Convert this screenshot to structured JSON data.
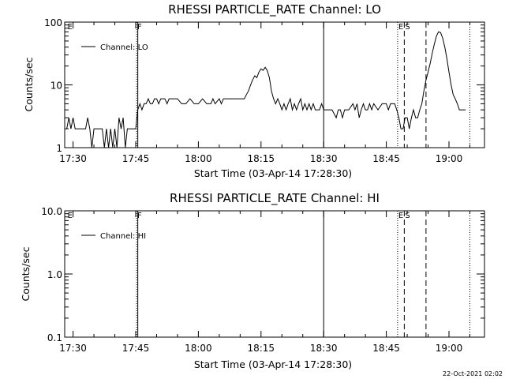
{
  "footer_timestamp": "22-Oct-2021 02:02",
  "chart_data": [
    {
      "type": "line",
      "title": "RHESSI PARTICLE_RATE Channel: LO",
      "xlabel": "Start Time (03-Apr-14 17:28:30)",
      "ylabel": "Counts/sec",
      "yscale": "log",
      "xlim_minutes": [
        -2,
        98.5
      ],
      "ylim": [
        1,
        100
      ],
      "x_ticks": [
        {
          "label": "17:30",
          "minute": 0
        },
        {
          "label": "17:45",
          "minute": 15
        },
        {
          "label": "18:00",
          "minute": 30
        },
        {
          "label": "18:15",
          "minute": 45
        },
        {
          "label": "18:30",
          "minute": 60
        },
        {
          "label": "18:45",
          "minute": 75
        },
        {
          "label": "19:00",
          "minute": 90
        }
      ],
      "y_ticks": [
        {
          "label": "1",
          "value": 1
        },
        {
          "label": "10",
          "value": 10
        },
        {
          "label": "100",
          "value": 100
        }
      ],
      "legend": {
        "label": "Channel: LO",
        "position": "top-left"
      },
      "markers": [
        {
          "minute": -1.5,
          "style": "none",
          "label": "E"
        },
        {
          "minute": 15.2,
          "style": "dotted",
          "label": "F"
        },
        {
          "minute": 15.5,
          "style": "solid",
          "label": ""
        },
        {
          "minute": 60.0,
          "style": "solid",
          "label": ""
        },
        {
          "minute": 77.7,
          "style": "dotted",
          "label": "E"
        },
        {
          "minute": 79.3,
          "style": "dashed",
          "label": "S"
        },
        {
          "minute": 84.5,
          "style": "dashed",
          "label": ""
        },
        {
          "minute": 95.0,
          "style": "dotted",
          "label": ""
        }
      ],
      "series": [
        {
          "name": "Channel: LO",
          "points": [
            [
              -1.5,
              2
            ],
            [
              -1,
              3
            ],
            [
              -0.5,
              2
            ],
            [
              0,
              3
            ],
            [
              0.5,
              2
            ],
            [
              1,
              2
            ],
            [
              2,
              2
            ],
            [
              3,
              2
            ],
            [
              3.5,
              3
            ],
            [
              4,
              2
            ],
            [
              4.5,
              1
            ],
            [
              5,
              2
            ],
            [
              6,
              2
            ],
            [
              7,
              2
            ],
            [
              7.5,
              1
            ],
            [
              8,
              2
            ],
            [
              8.5,
              1
            ],
            [
              9,
              2
            ],
            [
              9.5,
              1
            ],
            [
              10,
              2
            ],
            [
              10.5,
              1
            ],
            [
              11,
              3
            ],
            [
              11.5,
              2
            ],
            [
              12,
              3
            ],
            [
              12.5,
              1
            ],
            [
              13,
              2
            ],
            [
              14,
              2
            ],
            [
              14.5,
              2
            ],
            [
              15,
              2
            ],
            [
              15.5,
              4
            ],
            [
              16,
              5
            ],
            [
              16.5,
              4
            ],
            [
              17,
              5
            ],
            [
              17.5,
              5
            ],
            [
              18,
              6
            ],
            [
              18.5,
              5
            ],
            [
              19,
              5
            ],
            [
              19.5,
              6
            ],
            [
              20,
              6
            ],
            [
              20.5,
              5
            ],
            [
              21,
              6
            ],
            [
              22,
              6
            ],
            [
              22.5,
              5
            ],
            [
              23,
              6
            ],
            [
              24,
              6
            ],
            [
              25,
              6
            ],
            [
              26,
              5
            ],
            [
              27,
              5
            ],
            [
              28,
              6
            ],
            [
              29,
              5
            ],
            [
              30,
              5
            ],
            [
              31,
              6
            ],
            [
              32,
              5
            ],
            [
              33,
              5
            ],
            [
              33.5,
              6
            ],
            [
              34,
              5
            ],
            [
              35,
              6
            ],
            [
              35.5,
              5
            ],
            [
              36,
              6
            ],
            [
              37,
              6
            ],
            [
              38,
              6
            ],
            [
              39,
              6
            ],
            [
              40,
              6
            ],
            [
              41,
              6
            ],
            [
              41.5,
              7
            ],
            [
              42,
              8
            ],
            [
              42.5,
              10
            ],
            [
              43,
              12
            ],
            [
              43.5,
              14
            ],
            [
              44,
              13
            ],
            [
              44.5,
              16
            ],
            [
              45,
              18
            ],
            [
              45.5,
              17
            ],
            [
              46,
              19
            ],
            [
              46.5,
              17
            ],
            [
              47,
              13
            ],
            [
              47.5,
              8
            ],
            [
              48,
              6
            ],
            [
              48.5,
              5
            ],
            [
              49,
              6
            ],
            [
              49.5,
              5
            ],
            [
              50,
              4
            ],
            [
              50.5,
              5
            ],
            [
              51,
              4
            ],
            [
              51.5,
              5
            ],
            [
              52,
              6
            ],
            [
              52.5,
              4
            ],
            [
              53,
              5
            ],
            [
              53.5,
              4
            ],
            [
              54,
              5
            ],
            [
              54.5,
              6
            ],
            [
              55,
              4
            ],
            [
              55.5,
              5
            ],
            [
              56,
              4
            ],
            [
              56.5,
              5
            ],
            [
              57,
              4
            ],
            [
              57.5,
              5
            ],
            [
              58,
              4
            ],
            [
              59,
              4
            ],
            [
              59.5,
              5
            ],
            [
              60,
              4
            ],
            [
              61,
              4
            ],
            [
              62,
              4
            ],
            [
              63,
              3
            ],
            [
              63.5,
              4
            ],
            [
              64,
              4
            ],
            [
              64.5,
              3
            ],
            [
              65,
              4
            ],
            [
              66,
              4
            ],
            [
              67,
              5
            ],
            [
              67.5,
              4
            ],
            [
              68,
              5
            ],
            [
              68.5,
              3
            ],
            [
              69,
              4
            ],
            [
              69.5,
              5
            ],
            [
              70,
              4
            ],
            [
              70.5,
              4
            ],
            [
              71,
              5
            ],
            [
              71.5,
              4
            ],
            [
              72,
              5
            ],
            [
              73,
              4
            ],
            [
              74,
              5
            ],
            [
              75,
              5
            ],
            [
              75.5,
              4
            ],
            [
              76,
              5
            ],
            [
              77,
              5
            ],
            [
              77.5,
              4
            ],
            [
              78,
              3
            ],
            [
              78.5,
              2
            ],
            [
              79,
              2
            ],
            [
              79.5,
              3
            ],
            [
              80,
              3
            ],
            [
              80.5,
              2
            ],
            [
              81,
              3
            ],
            [
              81.5,
              4
            ],
            [
              82,
              3
            ],
            [
              82.5,
              3
            ],
            [
              83,
              4
            ],
            [
              83.5,
              5
            ],
            [
              84,
              8
            ],
            [
              84.5,
              12
            ],
            [
              85,
              16
            ],
            [
              85.5,
              22
            ],
            [
              86,
              32
            ],
            [
              86.5,
              45
            ],
            [
              87,
              60
            ],
            [
              87.5,
              70
            ],
            [
              88,
              68
            ],
            [
              88.5,
              55
            ],
            [
              89,
              40
            ],
            [
              89.5,
              26
            ],
            [
              90,
              16
            ],
            [
              90.5,
              10
            ],
            [
              91,
              7
            ],
            [
              91.5,
              6
            ],
            [
              92,
              5
            ],
            [
              92.5,
              4
            ],
            [
              93,
              4
            ],
            [
              94,
              4
            ]
          ]
        }
      ]
    },
    {
      "type": "line",
      "title": "RHESSI PARTICLE_RATE Channel: HI",
      "xlabel": "Start Time (03-Apr-14 17:28:30)",
      "ylabel": "Counts/sec",
      "yscale": "log",
      "xlim_minutes": [
        -2,
        98.5
      ],
      "ylim": [
        0.1,
        10
      ],
      "x_ticks": [
        {
          "label": "17:30",
          "minute": 0
        },
        {
          "label": "17:45",
          "minute": 15
        },
        {
          "label": "18:00",
          "minute": 30
        },
        {
          "label": "18:15",
          "minute": 45
        },
        {
          "label": "18:30",
          "minute": 60
        },
        {
          "label": "18:45",
          "minute": 75
        },
        {
          "label": "19:00",
          "minute": 90
        }
      ],
      "y_ticks": [
        {
          "label": "0.1",
          "value": 0.1
        },
        {
          "label": "1.0",
          "value": 1
        },
        {
          "label": "10.0",
          "value": 10
        }
      ],
      "legend": {
        "label": "Channel: HI",
        "position": "top-left"
      },
      "markers": [
        {
          "minute": -1.5,
          "style": "none",
          "label": "E"
        },
        {
          "minute": 15.2,
          "style": "dotted",
          "label": "F"
        },
        {
          "minute": 15.5,
          "style": "solid",
          "label": ""
        },
        {
          "minute": 60.0,
          "style": "solid",
          "label": ""
        },
        {
          "minute": 77.7,
          "style": "dotted",
          "label": "E"
        },
        {
          "minute": 79.3,
          "style": "dashed",
          "label": "S"
        },
        {
          "minute": 84.5,
          "style": "dashed",
          "label": ""
        },
        {
          "minute": 95.0,
          "style": "dotted",
          "label": ""
        }
      ],
      "series": [
        {
          "name": "Channel: HI",
          "points": []
        }
      ]
    }
  ]
}
